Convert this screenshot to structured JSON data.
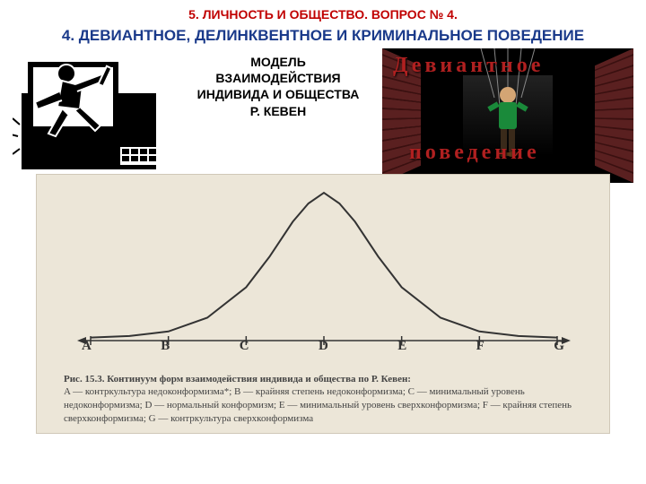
{
  "header_small": "5. ЛИЧНОСТЬ И ОБЩЕСТВО. ВОПРОС № 4.",
  "header_small_color": "#c00000",
  "header_main": "4. ДЕВИАНТНОЕ, ДЕЛИНКВЕНТНОЕ И КРИМИНАЛЬНОЕ ПОВЕДЕНИЕ",
  "header_main_color": "#1a3a8a",
  "center_block": "МОДЕЛЬ ВЗАИМОДЕЙСТВИЯ ИНДИВИДА И ОБЩЕСТВА Р. КЕВЕН",
  "right_overlay_top": "Девиантное",
  "right_overlay_bottom": "поведение",
  "chart": {
    "type": "line",
    "background_color": "#ece6d8",
    "curve_color": "#333333",
    "curve_width": 2,
    "axis_color": "#333333",
    "tick_labels": [
      "A",
      "B",
      "C",
      "D",
      "E",
      "F",
      "G"
    ],
    "tick_label_fontsize": 15,
    "x_range": [
      0,
      6
    ],
    "curve_points": [
      [
        0,
        0.02
      ],
      [
        0.5,
        0.03
      ],
      [
        1.0,
        0.06
      ],
      [
        1.5,
        0.15
      ],
      [
        2.0,
        0.35
      ],
      [
        2.3,
        0.55
      ],
      [
        2.6,
        0.78
      ],
      [
        2.8,
        0.9
      ],
      [
        3.0,
        0.97
      ],
      [
        3.2,
        0.9
      ],
      [
        3.4,
        0.78
      ],
      [
        3.7,
        0.55
      ],
      [
        4.0,
        0.35
      ],
      [
        4.5,
        0.15
      ],
      [
        5.0,
        0.06
      ],
      [
        5.5,
        0.03
      ],
      [
        6.0,
        0.02
      ]
    ],
    "caption_title": "Рис. 15.3. Континуум форм взаимодействия индивида и общества по Р. Кевен:",
    "caption_body": "A — контркультура недоконформизма*; B — крайняя степень недоконформизма; C — минимальный уровень недоконформизма; D — нормальный конформизм; E — минимальный уровень сверхконформизма; F — крайняя степень сверхконформизма; G — контркультура сверхконформизма"
  }
}
